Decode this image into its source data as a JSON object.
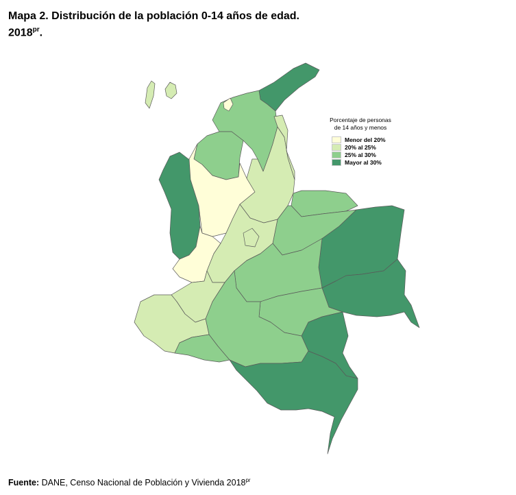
{
  "title": {
    "line1": "Mapa 2. Distribución de la población 0-14 años de edad.",
    "line2": "2018",
    "sup": "pr",
    "suffix": "."
  },
  "legend": {
    "title_line1": "Porcentaje de personas",
    "title_line2": "de 14 años y menos",
    "items": [
      {
        "label": "Menor del 20%",
        "color": "#fffed8"
      },
      {
        "label": "20% al 25%",
        "color": "#d5ecb3"
      },
      {
        "label": "25% al 30%",
        "color": "#8ecf8d"
      },
      {
        "label": "Mayor al 30%",
        "color": "#43976a"
      }
    ]
  },
  "footer": {
    "source_label": "Fuente:",
    "text": " DANE, Censo Nacional de Población y Vivienda 2018",
    "sup": "pr"
  }
}
